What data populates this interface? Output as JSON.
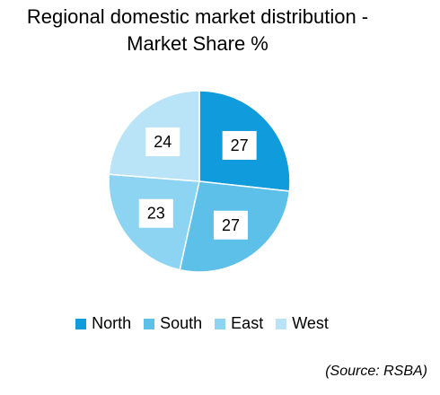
{
  "chart_data": {
    "type": "pie",
    "title": "Regional domestic market distribution -",
    "subtitle": "Market Share %",
    "categories": [
      "North",
      "South",
      "East",
      "West"
    ],
    "values": [
      27,
      27,
      23,
      24
    ],
    "colors": [
      "#0f9bdc",
      "#5cc0e8",
      "#8dd4f3",
      "#b9e3f6"
    ],
    "data_labels": [
      "27",
      "27",
      "23",
      "24"
    ],
    "legend_position": "bottom",
    "start": "12 o'clock",
    "direction": "clockwise"
  },
  "source": "(Source: RSBA)"
}
